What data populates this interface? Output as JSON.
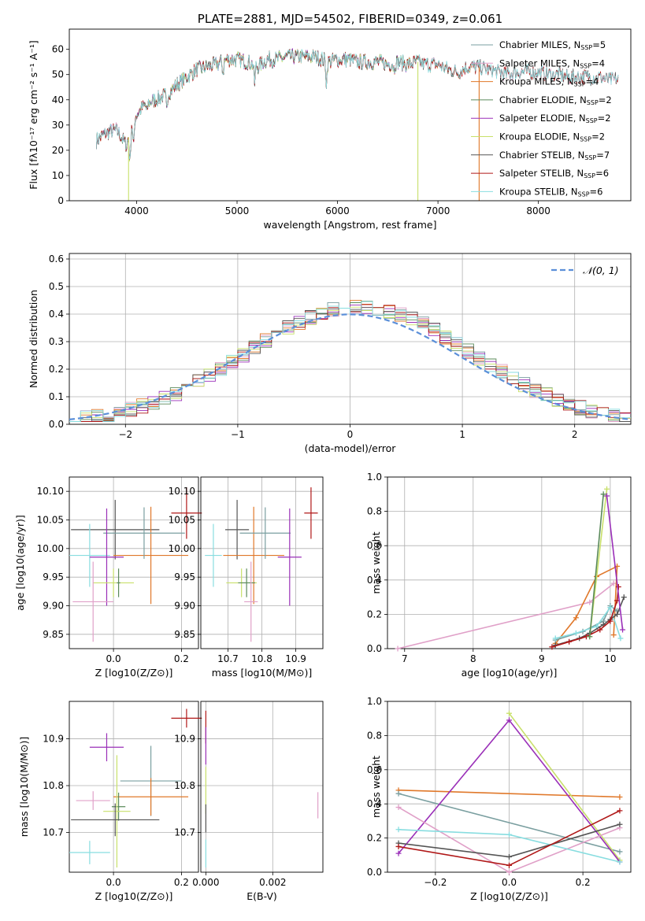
{
  "figure": {
    "title": "PLATE=2881, MJD=54502, FIBERID=0349, z=0.061"
  },
  "colors": {
    "Chabrier MILES": "#7a9fa0",
    "Salpeter MILES": "#e0a0c8",
    "Kroupa MILES": "#e0782a",
    "Chabrier ELODIE": "#5a8a5a",
    "Salpeter ELODIE": "#9a2fb8",
    "Kroupa ELODIE": "#c8e06a",
    "Chabrier STELIB": "#555555",
    "Salpeter STELIB": "#b01818",
    "Kroupa STELIB": "#88dde0",
    "axis": "#000000",
    "grid": "#b0b0b0"
  },
  "chart_data": [
    {
      "id": "spectrum",
      "type": "line",
      "title": "PLATE=2881, MJD=54502, FIBERID=0349, z=0.061",
      "xlabel": "wavelength [Angstrom, rest frame]",
      "ylabel": "Flux [fλ10⁻¹⁷ erg cm⁻² s⁻¹ A⁻¹]",
      "xlim": [
        3330,
        8920
      ],
      "ylim": [
        0,
        68
      ],
      "xticks": [
        4000,
        5000,
        6000,
        7000,
        8000
      ],
      "yticks": [
        0,
        10,
        20,
        30,
        40,
        50,
        60
      ],
      "grid": false,
      "legend_position": "top-right",
      "legend": [
        "Chabrier MILES, N_SSP=5",
        "Salpeter MILES, N_SSP=4",
        "Kroupa MILES, N_SSP=4",
        "Chabrier ELODIE, N_SSP=2",
        "Salpeter ELODIE, N_SSP=2",
        "Kroupa ELODIE, N_SSP=2",
        "Chabrier STELIB, N_SSP=7",
        "Salpeter STELIB, N_SSP=6",
        "Kroupa STELIB, N_SSP=6"
      ],
      "continuum": [
        [
          3600,
          24
        ],
        [
          3700,
          27
        ],
        [
          3800,
          28
        ],
        [
          3900,
          22
        ],
        [
          3950,
          30
        ],
        [
          4000,
          34
        ],
        [
          4100,
          39
        ],
        [
          4200,
          40
        ],
        [
          4300,
          42
        ],
        [
          4400,
          46
        ],
        [
          4500,
          49
        ],
        [
          4600,
          52
        ],
        [
          4700,
          53
        ],
        [
          4800,
          54
        ],
        [
          4900,
          56
        ],
        [
          5000,
          56
        ],
        [
          5100,
          55
        ],
        [
          5200,
          53
        ],
        [
          5300,
          56
        ],
        [
          5400,
          56
        ],
        [
          5500,
          57
        ],
        [
          5600,
          57
        ],
        [
          5700,
          57
        ],
        [
          5800,
          57
        ],
        [
          5900,
          55
        ],
        [
          6000,
          56
        ],
        [
          6100,
          56
        ],
        [
          6200,
          55
        ],
        [
          6300,
          55
        ],
        [
          6400,
          55
        ],
        [
          6500,
          54
        ],
        [
          6600,
          55
        ],
        [
          6700,
          54
        ],
        [
          6800,
          55
        ],
        [
          6900,
          54
        ],
        [
          7000,
          54
        ],
        [
          7100,
          52
        ],
        [
          7200,
          51
        ],
        [
          7300,
          53
        ],
        [
          7400,
          53
        ],
        [
          7500,
          52
        ],
        [
          7600,
          51
        ],
        [
          7700,
          50
        ],
        [
          7800,
          51
        ],
        [
          7900,
          51
        ],
        [
          8000,
          51
        ],
        [
          8100,
          50
        ],
        [
          8200,
          50
        ],
        [
          8300,
          49
        ],
        [
          8400,
          49
        ],
        [
          8500,
          49
        ],
        [
          8600,
          49
        ],
        [
          8700,
          48
        ],
        [
          8800,
          48
        ]
      ],
      "drops": [
        {
          "series": "Kroupa ELODIE",
          "x": 3920,
          "side": "left"
        },
        {
          "series": "Kroupa ELODIE",
          "x": 6800,
          "side": "single"
        },
        {
          "series": "Kroupa MILES",
          "x": 7410,
          "side": "right"
        }
      ]
    },
    {
      "id": "residuals",
      "type": "line",
      "xlabel": "(data-model)/error",
      "ylabel": "Normed distribution",
      "xlim": [
        -2.5,
        2.5
      ],
      "ylim": [
        0,
        0.62
      ],
      "xticks": [
        -2,
        -1,
        0,
        1,
        2
      ],
      "yticks": [
        0.0,
        0.1,
        0.2,
        0.3,
        0.4,
        0.5,
        0.6
      ],
      "grid": true,
      "legend": [
        "𝒩(0, 1)"
      ],
      "legend_position": "top-right",
      "reference": "N(0,1) gaussian, dashed, #5b8fd9",
      "bin_width": 0.1
    },
    {
      "id": "z-vs-age",
      "type": "scatter",
      "xlabel": "Z [log10(Z/Z⊙)]",
      "ylabel": "age  [log10(age/yr)]",
      "xlim": [
        -0.13,
        0.25
      ],
      "ylim": [
        9.825,
        10.125
      ],
      "xticks": [
        0.0,
        0.2
      ],
      "yticks": [
        9.85,
        9.9,
        9.95,
        10.0,
        10.05,
        10.1
      ],
      "grid": true,
      "points": [
        {
          "series": "Salpeter STELIB",
          "x": 0.215,
          "y": 10.062,
          "xerr": 0.045,
          "yerr": 0.045
        },
        {
          "series": "Chabrier STELIB",
          "x": 0.005,
          "y": 10.033,
          "xerr": 0.13,
          "yerr": 0.052
        },
        {
          "series": "Kroupa MILES",
          "x": 0.11,
          "y": 9.988,
          "xerr": 0.11,
          "yerr": 0.085
        },
        {
          "series": "Chabrier MILES",
          "x": 0.09,
          "y": 10.027,
          "xerr": 0.12,
          "yerr": 0.045
        },
        {
          "series": "Kroupa STELIB",
          "x": -0.07,
          "y": 9.988,
          "xerr": 0.06,
          "yerr": 0.055
        },
        {
          "series": "Salpeter ELODIE",
          "x": -0.02,
          "y": 9.985,
          "xerr": 0.05,
          "yerr": 0.085
        },
        {
          "series": "Kroupa ELODIE",
          "x": 0.0,
          "y": 9.94,
          "xerr": 0.06,
          "yerr": 0.025
        },
        {
          "series": "Chabrier ELODIE",
          "x": 0.015,
          "y": 9.94,
          "xerr": 0.005,
          "yerr": 0.025
        },
        {
          "series": "Salpeter MILES",
          "x": -0.06,
          "y": 9.907,
          "xerr": 0.06,
          "yerr": 0.07
        }
      ]
    },
    {
      "id": "mass-vs-age",
      "type": "scatter",
      "xlabel": "mass [log10(M/M⊙)]",
      "ylabel": "",
      "xlim": [
        10.62,
        10.98
      ],
      "ylim": [
        9.825,
        10.125
      ],
      "xticks": [
        10.7,
        10.8,
        10.9
      ],
      "yticks": [
        9.85,
        9.9,
        9.95,
        10.0,
        10.05,
        10.1
      ],
      "grid": true,
      "points": [
        {
          "series": "Salpeter STELIB",
          "x": 10.945,
          "y": 10.062,
          "xerr": 0.02,
          "yerr": 0.045
        },
        {
          "series": "Chabrier STELIB",
          "x": 10.727,
          "y": 10.033,
          "xerr": 0.035,
          "yerr": 0.052
        },
        {
          "series": "Kroupa MILES",
          "x": 10.776,
          "y": 9.988,
          "xerr": 0.09,
          "yerr": 0.085
        },
        {
          "series": "Chabrier MILES",
          "x": 10.81,
          "y": 10.027,
          "xerr": 0.075,
          "yerr": 0.045
        },
        {
          "series": "Kroupa STELIB",
          "x": 10.657,
          "y": 9.988,
          "xerr": 0.025,
          "yerr": 0.055
        },
        {
          "series": "Salpeter ELODIE",
          "x": 10.882,
          "y": 9.985,
          "xerr": 0.035,
          "yerr": 0.085
        },
        {
          "series": "Kroupa ELODIE",
          "x": 10.74,
          "y": 9.94,
          "xerr": 0.045,
          "yerr": 0.025
        },
        {
          "series": "Chabrier ELODIE",
          "x": 10.755,
          "y": 9.94,
          "xerr": 0.025,
          "yerr": 0.025
        },
        {
          "series": "Salpeter MILES",
          "x": 10.768,
          "y": 9.907,
          "xerr": 0.02,
          "yerr": 0.07
        }
      ]
    },
    {
      "id": "age-weights",
      "type": "line",
      "xlabel": "age  [log10(age/yr)]",
      "ylabel": "mass weight",
      "xlim": [
        6.75,
        10.3
      ],
      "ylim": [
        0,
        1.0
      ],
      "xticks": [
        7,
        8,
        9,
        10
      ],
      "yticks": [
        0.0,
        0.2,
        0.4,
        0.6,
        0.8,
        1.0
      ],
      "grid": true,
      "series": [
        {
          "series": "Salpeter MILES",
          "x": [
            6.9,
            9.7,
            10.05
          ],
          "values": [
            0.0,
            0.27,
            0.38
          ]
        },
        {
          "series": "Kroupa MILES",
          "x": [
            9.2,
            9.5,
            9.8,
            10.1,
            10.05
          ],
          "values": [
            0.03,
            0.18,
            0.42,
            0.48,
            0.08
          ]
        },
        {
          "series": "Chabrier MILES",
          "x": [
            9.2,
            9.6,
            9.9,
            10.0,
            10.1
          ],
          "values": [
            0.05,
            0.1,
            0.16,
            0.25,
            0.22
          ]
        },
        {
          "series": "Kroupa STELIB",
          "x": [
            9.2,
            9.5,
            9.8,
            10.0,
            10.15
          ],
          "values": [
            0.06,
            0.09,
            0.13,
            0.24,
            0.06
          ]
        },
        {
          "series": "Chabrier STELIB",
          "x": [
            9.2,
            9.55,
            9.7,
            9.9,
            10.0,
            10.1,
            10.2
          ],
          "values": [
            0.02,
            0.06,
            0.09,
            0.14,
            0.17,
            0.2,
            0.3
          ]
        },
        {
          "series": "Salpeter STELIB",
          "x": [
            9.15,
            9.4,
            9.65,
            9.85,
            10.0,
            10.1,
            10.12
          ],
          "values": [
            0.01,
            0.04,
            0.07,
            0.11,
            0.16,
            0.28,
            0.36
          ]
        },
        {
          "series": "Kroupa ELODIE",
          "x": [
            9.7,
            9.95
          ],
          "values": [
            0.07,
            0.93
          ]
        },
        {
          "series": "Salpeter ELODIE",
          "x": [
            9.95,
            10.18
          ],
          "values": [
            0.89,
            0.11
          ]
        },
        {
          "series": "Chabrier ELODIE",
          "x": [
            9.7,
            9.9
          ],
          "values": [
            0.07,
            0.9
          ]
        }
      ]
    },
    {
      "id": "z-vs-mass",
      "type": "scatter",
      "xlabel": "Z [log10(Z/Z⊙)]",
      "ylabel": "mass [log10(M/M⊙)]",
      "xlim": [
        -0.13,
        0.25
      ],
      "ylim": [
        10.615,
        10.98
      ],
      "xticks": [
        0.0,
        0.2
      ],
      "yticks": [
        10.7,
        10.8,
        10.9
      ],
      "grid": true,
      "points": [
        {
          "series": "Salpeter STELIB",
          "x": 0.215,
          "y": 10.944,
          "xerr": 0.045,
          "yerr": 0.02
        },
        {
          "series": "Salpeter ELODIE",
          "x": -0.02,
          "y": 10.882,
          "xerr": 0.05,
          "yerr": 0.03
        },
        {
          "series": "Chabrier MILES",
          "x": 0.11,
          "y": 10.81,
          "xerr": 0.09,
          "yerr": 0.075
        },
        {
          "series": "Kroupa MILES",
          "x": 0.11,
          "y": 10.776,
          "xerr": 0.11,
          "yerr": 0.04
        },
        {
          "series": "Salpeter MILES",
          "x": -0.06,
          "y": 10.768,
          "xerr": 0.05,
          "yerr": 0.02
        },
        {
          "series": "Chabrier ELODIE",
          "x": 0.015,
          "y": 10.755,
          "xerr": 0.02,
          "yerr": 0.03
        },
        {
          "series": "Kroupa ELODIE",
          "x": 0.01,
          "y": 10.745,
          "xerr": 0.04,
          "yerr": 0.12
        },
        {
          "series": "Chabrier STELIB",
          "x": 0.005,
          "y": 10.727,
          "xerr": 0.13,
          "yerr": 0.035
        },
        {
          "series": "Kroupa STELIB",
          "x": -0.07,
          "y": 10.657,
          "xerr": 0.06,
          "yerr": 0.025
        }
      ]
    },
    {
      "id": "ebv-vs-mass",
      "type": "scatter",
      "xlabel": "E(B-V)",
      "ylabel": "",
      "xlim": [
        -0.00015,
        0.0035
      ],
      "ylim": [
        10.615,
        10.98
      ],
      "xticks": [
        0.0,
        0.002
      ],
      "yticks": [
        10.7,
        10.8,
        10.9
      ],
      "grid": true,
      "points": [
        {
          "series": "Salpeter STELIB",
          "x": 0.0,
          "y": 10.925,
          "xerr": 0.0,
          "yerr": 0.035
        },
        {
          "series": "Salpeter ELODIE",
          "x": 0.0,
          "y": 10.885,
          "xerr": 0.0,
          "yerr": 0.04
        },
        {
          "series": "Kroupa ELODIE",
          "x": 0.0,
          "y": 10.79,
          "xerr": 0.0,
          "yerr": 0.05
        },
        {
          "series": "Chabrier STELIB",
          "x": 0.0,
          "y": 10.73,
          "xerr": 0.0,
          "yerr": 0.03
        },
        {
          "series": "Kroupa STELIB",
          "x": 0.0,
          "y": 10.655,
          "xerr": 0.0,
          "yerr": 0.03
        },
        {
          "series": "Salpeter MILES",
          "x": 0.00335,
          "y": 10.758,
          "xerr": 0.0,
          "yerr": 0.028
        }
      ]
    },
    {
      "id": "z-weights",
      "type": "line",
      "xlabel": "Z [log10(Z/Z⊙)]",
      "ylabel": "mass weight",
      "xlim": [
        -0.33,
        0.33
      ],
      "ylim": [
        0,
        1.0
      ],
      "xticks": [
        -0.2,
        0.0,
        0.2
      ],
      "yticks": [
        0.0,
        0.2,
        0.4,
        0.6,
        0.8,
        1.0
      ],
      "grid": true,
      "series": [
        {
          "series": "Kroupa MILES",
          "x": [
            -0.3,
            0.3
          ],
          "values": [
            0.48,
            0.44
          ]
        },
        {
          "series": "Chabrier MILES",
          "x": [
            -0.3,
            0.3
          ],
          "values": [
            0.46,
            0.12
          ]
        },
        {
          "series": "Kroupa ELODIE",
          "x": [
            0.0,
            0.3
          ],
          "values": [
            0.93,
            0.07
          ]
        },
        {
          "series": "Salpeter ELODIE",
          "x": [
            -0.3,
            0.0,
            0.3
          ],
          "values": [
            0.11,
            0.89,
            0.06
          ]
        },
        {
          "series": "Salpeter MILES",
          "x": [
            -0.3,
            0.0,
            0.3
          ],
          "values": [
            0.38,
            0.0,
            0.26
          ]
        },
        {
          "series": "Kroupa STELIB",
          "x": [
            -0.3,
            0.0,
            0.3
          ],
          "values": [
            0.25,
            0.22,
            0.06
          ]
        },
        {
          "series": "Chabrier STELIB",
          "x": [
            -0.3,
            0.0,
            0.3
          ],
          "values": [
            0.17,
            0.09,
            0.28
          ]
        },
        {
          "series": "Salpeter STELIB",
          "x": [
            -0.3,
            0.0,
            0.3
          ],
          "values": [
            0.15,
            0.04,
            0.36
          ]
        }
      ]
    }
  ]
}
